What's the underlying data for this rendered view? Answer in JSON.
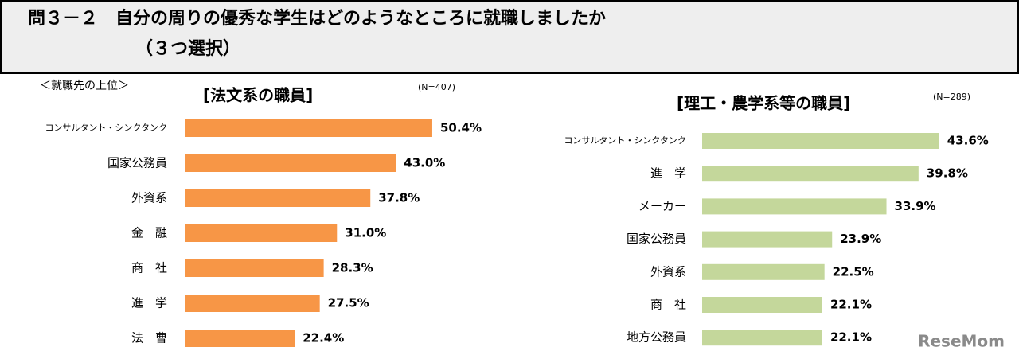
{
  "header": {
    "title_line1": "問３－２　自分の周りの優秀な学生はどのようなところに就職しましたか",
    "title_line2": "（３つ選択）"
  },
  "note": "＜就職先の上位＞",
  "watermark": "ReseMom",
  "chart_data": [
    {
      "type": "barh",
      "title": "[法文系の職員]",
      "n_label": "(N=407)",
      "color": "#f79646",
      "categories": [
        "コンサルタント・シンクタンク",
        "国家公務員",
        "外資系",
        "金　融",
        "商　社",
        "進　学",
        "法　曹"
      ],
      "values": [
        50.4,
        43.0,
        37.8,
        31.0,
        28.3,
        27.5,
        22.4
      ],
      "value_labels": [
        "50.4%",
        "43.0%",
        "37.8%",
        "31.0%",
        "28.3%",
        "27.5%",
        "22.4%"
      ]
    },
    {
      "type": "barh",
      "title": "[理工・農学系等の職員]",
      "n_label": "(N=289)",
      "color": "#c4d79b",
      "categories": [
        "コンサルタント・シンクタンク",
        "進　学",
        "メーカー",
        "国家公務員",
        "外資系",
        "商　社",
        "地方公務員"
      ],
      "values": [
        43.6,
        39.8,
        33.9,
        23.9,
        22.5,
        22.1,
        22.1
      ],
      "value_labels": [
        "43.6%",
        "39.8%",
        "33.9%",
        "23.9%",
        "22.5%",
        "22.1%",
        "22.1%"
      ]
    }
  ]
}
